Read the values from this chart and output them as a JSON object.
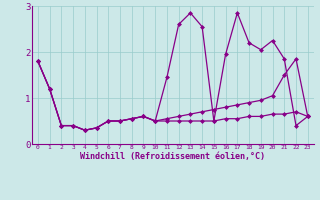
{
  "xlabel": "Windchill (Refroidissement éolien,°C)",
  "background_color": "#cce8e8",
  "line_color": "#880088",
  "x": [
    0,
    1,
    2,
    3,
    4,
    5,
    6,
    7,
    8,
    9,
    10,
    11,
    12,
    13,
    14,
    15,
    16,
    17,
    18,
    19,
    20,
    21,
    22,
    23
  ],
  "series1": [
    1.8,
    1.2,
    0.4,
    0.4,
    0.3,
    0.35,
    0.5,
    0.5,
    0.55,
    0.6,
    0.5,
    1.45,
    2.6,
    2.85,
    2.55,
    0.5,
    1.95,
    2.85,
    2.2,
    2.05,
    2.25,
    1.85,
    0.4,
    0.6
  ],
  "series2": [
    1.8,
    1.2,
    0.4,
    0.4,
    0.3,
    0.35,
    0.5,
    0.5,
    0.55,
    0.6,
    0.5,
    0.55,
    0.6,
    0.65,
    0.7,
    0.75,
    0.8,
    0.85,
    0.9,
    0.95,
    1.05,
    1.5,
    1.85,
    0.6
  ],
  "series3": [
    1.8,
    1.2,
    0.4,
    0.4,
    0.3,
    0.35,
    0.5,
    0.5,
    0.55,
    0.6,
    0.5,
    0.5,
    0.5,
    0.5,
    0.5,
    0.5,
    0.55,
    0.55,
    0.6,
    0.6,
    0.65,
    0.65,
    0.7,
    0.6
  ],
  "ylim": [
    0,
    3
  ],
  "xlim": [
    -0.5,
    23.5
  ],
  "yticks": [
    0,
    1,
    2,
    3
  ],
  "xticks": [
    0,
    1,
    2,
    3,
    4,
    5,
    6,
    7,
    8,
    9,
    10,
    11,
    12,
    13,
    14,
    15,
    16,
    17,
    18,
    19,
    20,
    21,
    22,
    23
  ],
  "grid_color": "#99cccc",
  "markersize": 2.5,
  "linewidth": 0.9
}
